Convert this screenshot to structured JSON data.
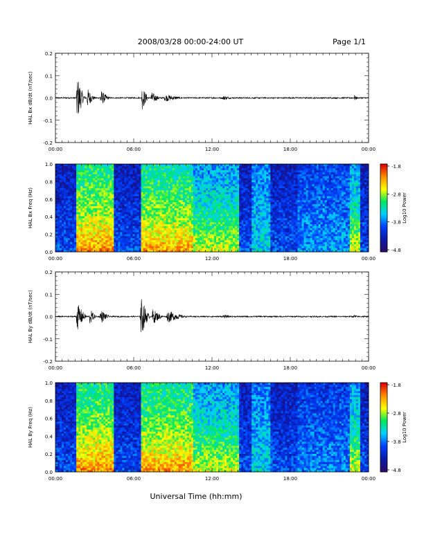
{
  "header": {
    "title": "2008/03/28  00:00-24:00 UT",
    "page": "Page 1/1"
  },
  "footer": {
    "xlabel": "Universal Time (hh:mm)"
  },
  "time_ticks": [
    "00:00",
    "06:00",
    "12:00",
    "18:00",
    "00:00"
  ],
  "colors": {
    "trace": "#000000",
    "colormap": [
      "#2a0a6a",
      "#0a1aaa",
      "#0040ff",
      "#00d0ff",
      "#00e860",
      "#ffff00",
      "#ff9000",
      "#e00000"
    ]
  },
  "chart_data": [
    {
      "type": "line",
      "title": "",
      "ylabel": "HAL Bx dB/dt (nT/sec)",
      "xlim": [
        0,
        24
      ],
      "ylim": [
        -0.2,
        0.2
      ],
      "yticks": [
        "0.2",
        "0.1",
        "0.0",
        "-0.1",
        "-0.2"
      ],
      "grid": false,
      "bursts": [
        {
          "start": 1.6,
          "end": 2.4,
          "amplitude": 0.12
        },
        {
          "start": 2.4,
          "end": 3.2,
          "amplitude": 0.05
        },
        {
          "start": 3.4,
          "end": 4.4,
          "amplitude": 0.04
        },
        {
          "start": 6.6,
          "end": 7.3,
          "amplitude": 0.06
        },
        {
          "start": 7.3,
          "end": 8.3,
          "amplitude": 0.03
        },
        {
          "start": 8.3,
          "end": 10.5,
          "amplitude": 0.018
        },
        {
          "start": 12.8,
          "end": 14.0,
          "amplitude": 0.012
        },
        {
          "start": 22.9,
          "end": 23.3,
          "amplitude": 0.015
        }
      ]
    },
    {
      "type": "heatmap",
      "title": "",
      "ylabel": "HAL Bx Freq (Hz)",
      "xlim": [
        0,
        24
      ],
      "ylim": [
        0,
        1.0
      ],
      "yticks": [
        "1.0",
        "0.8",
        "0.6",
        "0.4",
        "0.2",
        "0.0"
      ],
      "colorbar": {
        "label": "Log10 Power",
        "range": [
          -4.8,
          -1.8
        ],
        "ticks": [
          "-1.8",
          "-2.8",
          "-3.8",
          "-4.8"
        ]
      },
      "active_bands": [
        {
          "start": 1.6,
          "end": 4.4,
          "level": 0.75
        },
        {
          "start": 6.6,
          "end": 10.5,
          "level": 0.7
        },
        {
          "start": 10.5,
          "end": 14.0,
          "level": 0.45
        },
        {
          "start": 15.0,
          "end": 16.5,
          "level": 0.35
        },
        {
          "start": 18.5,
          "end": 22.5,
          "level": 0.2
        },
        {
          "start": 22.5,
          "end": 23.3,
          "level": 0.45
        }
      ]
    },
    {
      "type": "line",
      "title": "",
      "ylabel": "HAL By dB/dt (nT/sec)",
      "xlim": [
        0,
        24
      ],
      "ylim": [
        -0.2,
        0.2
      ],
      "yticks": [
        "0.2",
        "0.1",
        "0.0",
        "-0.1",
        "-0.2"
      ],
      "grid": false,
      "bursts": [
        {
          "start": 1.6,
          "end": 2.6,
          "amplitude": 0.07
        },
        {
          "start": 2.6,
          "end": 3.3,
          "amplitude": 0.04
        },
        {
          "start": 3.4,
          "end": 4.4,
          "amplitude": 0.035
        },
        {
          "start": 6.5,
          "end": 7.4,
          "amplitude": 0.1
        },
        {
          "start": 7.4,
          "end": 8.5,
          "amplitude": 0.04
        },
        {
          "start": 8.5,
          "end": 10.5,
          "amplitude": 0.03
        },
        {
          "start": 12.8,
          "end": 14.0,
          "amplitude": 0.01
        },
        {
          "start": 22.9,
          "end": 23.3,
          "amplitude": 0.01
        }
      ]
    },
    {
      "type": "heatmap",
      "title": "",
      "ylabel": "HAL By Freq (Hz)",
      "xlim": [
        0,
        24
      ],
      "ylim": [
        0,
        1.0
      ],
      "yticks": [
        "1.0",
        "0.8",
        "0.6",
        "0.4",
        "0.2",
        "0.0"
      ],
      "colorbar": {
        "label": "Log10 Power",
        "range": [
          -4.8,
          -1.8
        ],
        "ticks": [
          "-1.8",
          "-2.8",
          "-3.8",
          "-4.8"
        ]
      },
      "active_bands": [
        {
          "start": 1.6,
          "end": 4.4,
          "level": 0.75
        },
        {
          "start": 6.6,
          "end": 10.5,
          "level": 0.72
        },
        {
          "start": 10.5,
          "end": 14.0,
          "level": 0.45
        },
        {
          "start": 15.0,
          "end": 16.5,
          "level": 0.35
        },
        {
          "start": 18.5,
          "end": 22.5,
          "level": 0.15
        },
        {
          "start": 22.5,
          "end": 23.3,
          "level": 0.45
        }
      ]
    }
  ]
}
